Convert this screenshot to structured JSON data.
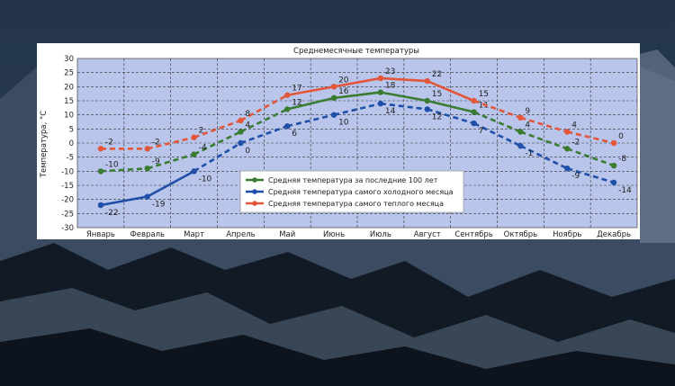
{
  "chart_data": {
    "type": "line",
    "title": "Среднемесячные температуры",
    "ylabel": "Температура, °C",
    "xlabel": "",
    "ylim": [
      -30,
      30
    ],
    "yticks": [
      -30,
      -25,
      -20,
      -15,
      -10,
      -5,
      0,
      5,
      10,
      15,
      20,
      25,
      30
    ],
    "categories": [
      "Январь",
      "Февраль",
      "Март",
      "Апрель",
      "Май",
      "Июнь",
      "Июль",
      "Август",
      "Сентябрь",
      "Октябрь",
      "Ноябрь",
      "Декабрь"
    ],
    "grid": true,
    "legend_position": "bottom-center",
    "series": [
      {
        "name": "Средняя температура за последние 100 лет",
        "color": "#3a7d32",
        "values": [
          -10,
          -9,
          -4,
          4,
          12,
          16,
          18,
          15,
          11,
          4,
          -2,
          -8
        ]
      },
      {
        "name": "Средняя температура самого холодного месяца",
        "color": "#1f4fa8",
        "values": [
          -22,
          -19,
          -10,
          0,
          6,
          10,
          14,
          12,
          7,
          -1,
          -9,
          -14
        ]
      },
      {
        "name": "Средняя температура самого теплого месяца",
        "color": "#e2573a",
        "values": [
          -2,
          -2,
          2,
          8,
          17,
          20,
          23,
          22,
          15,
          9,
          4,
          0
        ]
      }
    ]
  }
}
